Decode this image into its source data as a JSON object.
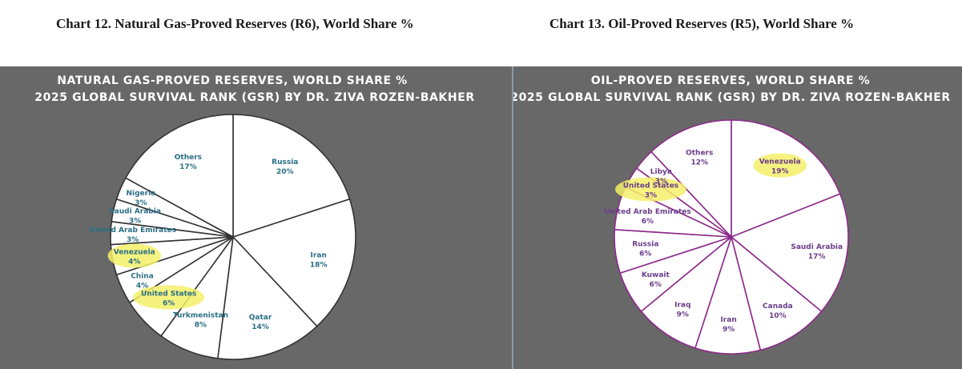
{
  "captions": {
    "left": "Chart 12. Natural Gas-Proved Reserves (R6), World Share %",
    "right": "Chart 13. Oil-Proved Reserves (R5), World Share %"
  },
  "colors": {
    "panel_bg": "#686868",
    "slice_fill": "#ffffff",
    "gas_stroke": "#333333",
    "gas_label": "#2a6e85",
    "oil_stroke": "#8c2a8a",
    "oil_label": "#6a3d8a",
    "highlight": "#f5f06a"
  },
  "chart_data": [
    {
      "type": "pie",
      "title": "NATURAL GAS-PROVED RESERVES, WORLD SHARE %",
      "subtitle": "2025 GLOBAL SURVIVAL RANK (GSR) BY DR. ZIVA ROZEN-BAKHER",
      "start_angle_deg": 0,
      "direction": "clockwise",
      "slices": [
        {
          "label": "Russia",
          "value": 20,
          "value_label": "20%",
          "highlight": false
        },
        {
          "label": "Iran",
          "value": 18,
          "value_label": "18%",
          "highlight": false
        },
        {
          "label": "Qatar",
          "value": 14,
          "value_label": "14%",
          "highlight": false
        },
        {
          "label": "Turkmenistan",
          "value": 8,
          "value_label": "8%",
          "highlight": false
        },
        {
          "label": "United States",
          "value": 6,
          "value_label": "6%",
          "highlight": true
        },
        {
          "label": "China",
          "value": 4,
          "value_label": "4%",
          "highlight": false
        },
        {
          "label": "Venezuela",
          "value": 4,
          "value_label": "4%",
          "highlight": true
        },
        {
          "label": "United Arab Emirates",
          "value": 3,
          "value_label": "3%",
          "highlight": false
        },
        {
          "label": "Saudi Arabia",
          "value": 3,
          "value_label": "3%",
          "highlight": false
        },
        {
          "label": "Nigeria",
          "value": 3,
          "value_label": "3%",
          "highlight": false
        },
        {
          "label": "Others",
          "value": 17,
          "value_label": "17%",
          "highlight": false
        }
      ]
    },
    {
      "type": "pie",
      "title": "OIL-PROVED RESERVES, WORLD SHARE %",
      "subtitle": "2025 GLOBAL SURVIVAL RANK (GSR) BY DR. ZIVA ROZEN-BAKHER",
      "start_angle_deg": 0,
      "direction": "clockwise",
      "slices": [
        {
          "label": "Venezuela",
          "value": 19,
          "value_label": "19%",
          "highlight": true
        },
        {
          "label": "Saudi Arabia",
          "value": 17,
          "value_label": "17%",
          "highlight": false
        },
        {
          "label": "Canada",
          "value": 10,
          "value_label": "10%",
          "highlight": false
        },
        {
          "label": "Iran",
          "value": 9,
          "value_label": "9%",
          "highlight": false
        },
        {
          "label": "Iraq",
          "value": 9,
          "value_label": "9%",
          "highlight": false
        },
        {
          "label": "Kuwait",
          "value": 6,
          "value_label": "6%",
          "highlight": false
        },
        {
          "label": "Russia",
          "value": 6,
          "value_label": "6%",
          "highlight": false
        },
        {
          "label": "United Arab Emirates",
          "value": 6,
          "value_label": "6%",
          "highlight": false
        },
        {
          "label": "United States",
          "value": 3,
          "value_label": "3%",
          "highlight": true
        },
        {
          "label": "Libya",
          "value": 3,
          "value_label": "3%",
          "highlight": false
        },
        {
          "label": "Others",
          "value": 12,
          "value_label": "12%",
          "highlight": false
        }
      ]
    }
  ]
}
